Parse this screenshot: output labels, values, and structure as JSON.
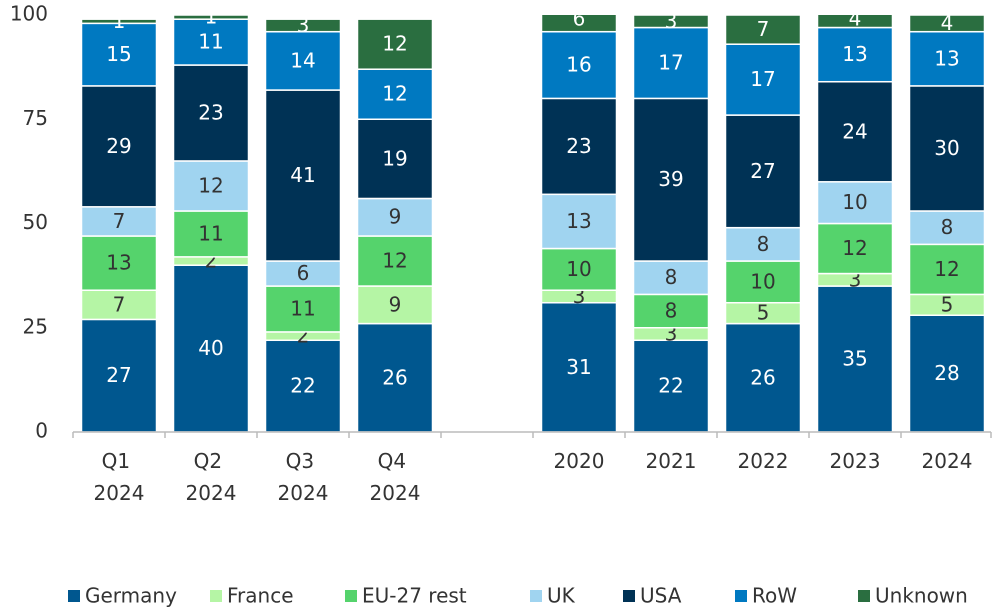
{
  "chart_data": {
    "type": "stacked_bar",
    "categories": [
      "Q1 2024",
      "Q2 2024",
      "Q3 2024",
      "Q4 2024",
      null,
      "2020",
      "2021",
      "2022",
      "2023",
      "2024"
    ],
    "series": [
      {
        "name": "Germany",
        "color": "#00578f",
        "values": [
          27,
          40,
          22,
          26,
          null,
          31,
          22,
          26,
          35,
          28
        ]
      },
      {
        "name": "France",
        "color": "#b5f5a5",
        "values": [
          7,
          2,
          2,
          9,
          null,
          3,
          3,
          5,
          3,
          5
        ]
      },
      {
        "name": "EU-27 rest",
        "color": "#55d36c",
        "values": [
          13,
          11,
          11,
          12,
          null,
          10,
          8,
          10,
          12,
          12
        ]
      },
      {
        "name": "UK",
        "color": "#a0d4f0",
        "values": [
          7,
          12,
          6,
          9,
          null,
          13,
          8,
          8,
          10,
          8
        ]
      },
      {
        "name": "USA",
        "color": "#003255",
        "values": [
          29,
          23,
          41,
          19,
          null,
          23,
          39,
          27,
          24,
          30
        ]
      },
      {
        "name": "RoW",
        "color": "#0079c1",
        "values": [
          15,
          11,
          14,
          12,
          null,
          16,
          17,
          17,
          13,
          13
        ]
      },
      {
        "name": "Unknown",
        "color": "#2a6e40",
        "values": [
          1,
          1,
          3,
          12,
          null,
          6,
          3,
          7,
          4,
          4
        ]
      }
    ],
    "ylim": [
      0,
      100
    ],
    "yticks": [
      0,
      25,
      50,
      75,
      100
    ],
    "grid": false
  }
}
